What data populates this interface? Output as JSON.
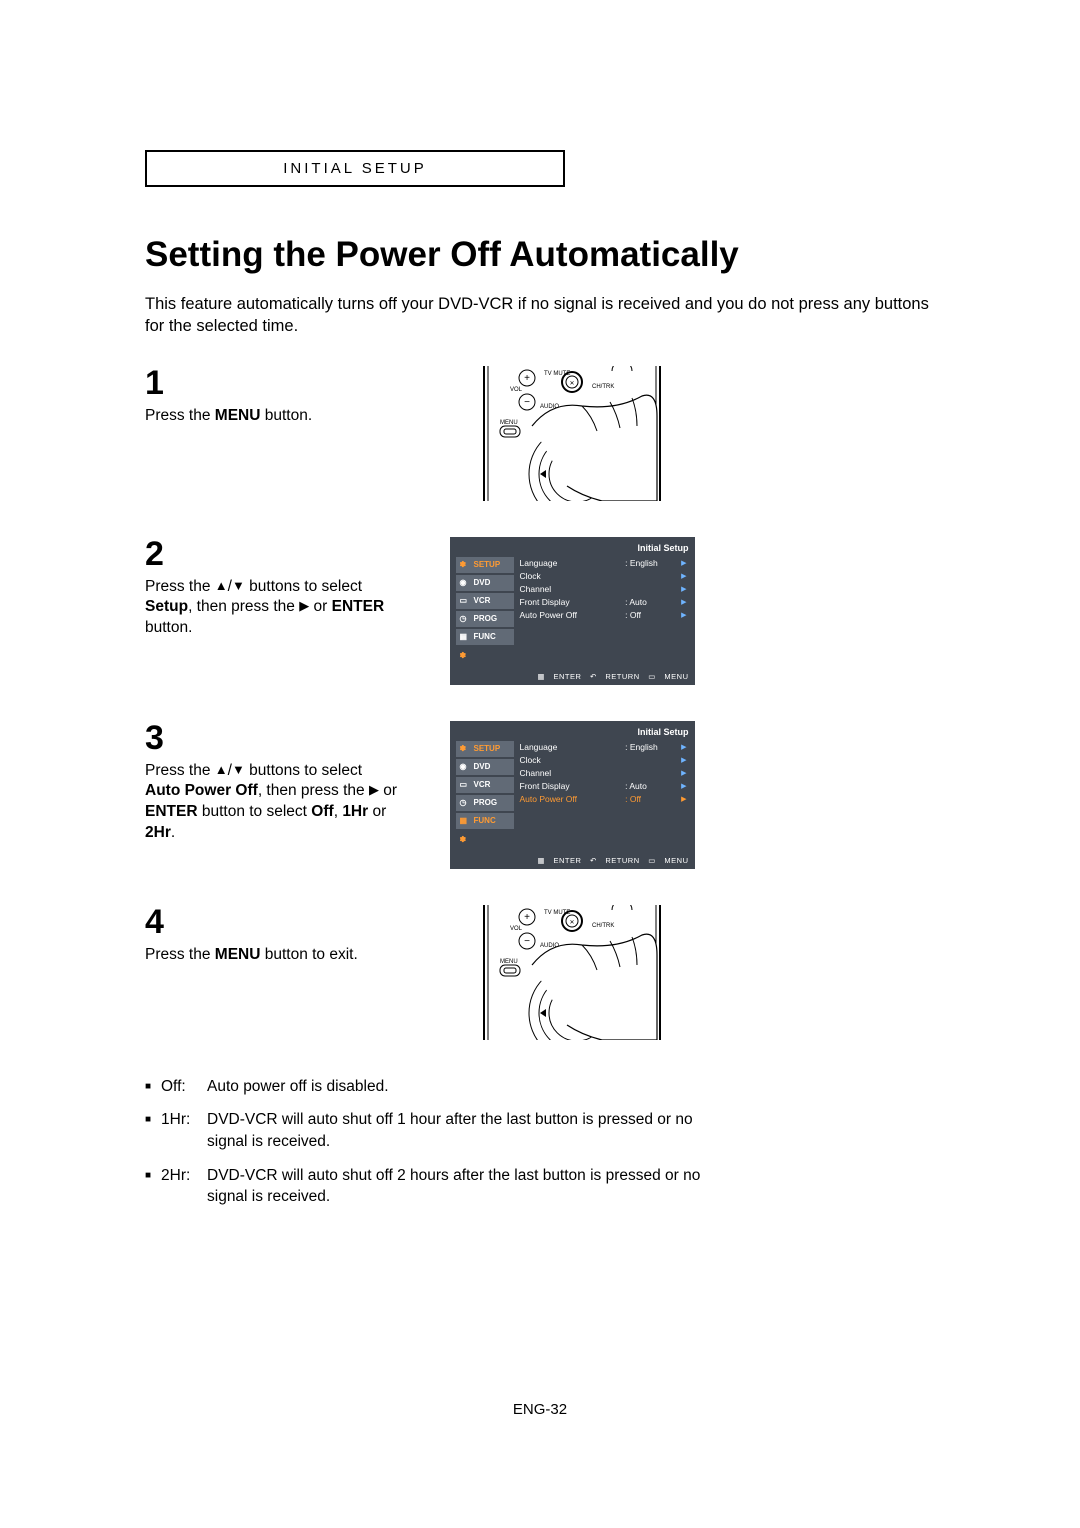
{
  "header": "INITIAL SETUP",
  "title": "Setting the Power Off Automatically",
  "intro": "This feature automatically turns off your DVD-VCR if no signal is received and you do not press any buttons for the selected time.",
  "steps": {
    "s1": {
      "num": "1",
      "text": "Press the <b>MENU</b> button."
    },
    "s2": {
      "num": "2",
      "text": "Press the <span class='arrow'>▲</span>/<span class='arrow'>▼</span> buttons to select <b>Setup</b>, then press the <span class='arrow'>▶</span> or <b>ENTER</b> button."
    },
    "s3": {
      "num": "3",
      "text": "Press the <span class='arrow'>▲</span>/<span class='arrow'>▼</span> buttons to select <b>Auto Power Off</b>, then press the <span class='arrow'>▶</span> or <b>ENTER</b> button to select <b>Off</b>, <b>1Hr</b> or <b>2Hr</b>."
    },
    "s4": {
      "num": "4",
      "text": "Press the <b>MENU</b> button to exit."
    }
  },
  "osd": {
    "title": "Initial Setup",
    "tabs": [
      "SETUP",
      "DVD",
      "VCR",
      "PROG",
      "FUNC"
    ],
    "rows": [
      {
        "k": "Language",
        "v": ": English"
      },
      {
        "k": "Clock",
        "v": ""
      },
      {
        "k": "Channel",
        "v": ""
      },
      {
        "k": "Front Display",
        "v": ": Auto"
      },
      {
        "k": "Auto Power Off",
        "v": ": Off"
      }
    ],
    "footer": [
      "ENTER",
      "RETURN",
      "MENU"
    ]
  },
  "bullets": [
    {
      "label": "Off:",
      "text": "Auto power off is disabled."
    },
    {
      "label": "1Hr:",
      "text": "DVD-VCR will auto shut off 1 hour after the last button is pressed or no signal is received."
    },
    {
      "label": "2Hr:",
      "text": "DVD-VCR will auto shut off 2 hours after the last button is pressed or no signal is received."
    }
  ],
  "remote_labels": {
    "tvmute": "TV MUTE",
    "vol": "VOL",
    "chtrk": "CH/TRK",
    "audio": "AUDIO",
    "menu": "MENU"
  },
  "pagenum": "ENG-32",
  "colors": {
    "osd_bg": "#3f4650",
    "osd_tab_bg": "#616a76",
    "accent_orange": "#ff9b33",
    "accent_blue": "#6fb4ff"
  }
}
